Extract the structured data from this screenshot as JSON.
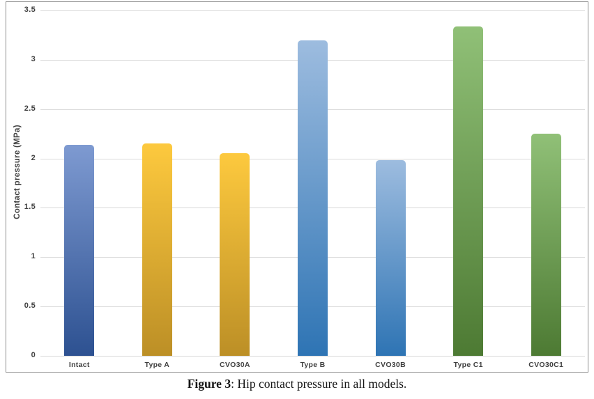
{
  "caption": {
    "label": "Figure 3",
    "text": ": Hip contact pressure in all models."
  },
  "chart_data": {
    "type": "bar",
    "title": "",
    "xlabel": "",
    "ylabel": "Contact pressure (MPa)",
    "ylim": [
      0,
      3.5
    ],
    "yticks": [
      0,
      0.5,
      1,
      1.5,
      2,
      2.5,
      3,
      3.5
    ],
    "grid": true,
    "legend": "none",
    "categories": [
      "Intact",
      "Type A",
      "CVO30A",
      "Type B",
      "CVO30B",
      "Type C1",
      "CVO30C1"
    ],
    "values": [
      2.14,
      2.15,
      2.05,
      3.2,
      1.98,
      3.34,
      2.25
    ],
    "bar_gradients": [
      {
        "top": "#7e9ad1",
        "bottom": "#2d5191"
      },
      {
        "top": "#fdc93e",
        "bottom": "#bc8f26"
      },
      {
        "top": "#fdc93e",
        "bottom": "#bc8f26"
      },
      {
        "top": "#9dbcdf",
        "bottom": "#2e74b4"
      },
      {
        "top": "#9dbcdf",
        "bottom": "#2e74b4"
      },
      {
        "top": "#90c077",
        "bottom": "#4d7a33"
      },
      {
        "top": "#90c077",
        "bottom": "#4d7a33"
      }
    ],
    "colors": {
      "gridline": "#d9d9d9",
      "frame_border": "#8c8c8c",
      "tick_label": "#404040",
      "axis_title": "#404040"
    }
  }
}
